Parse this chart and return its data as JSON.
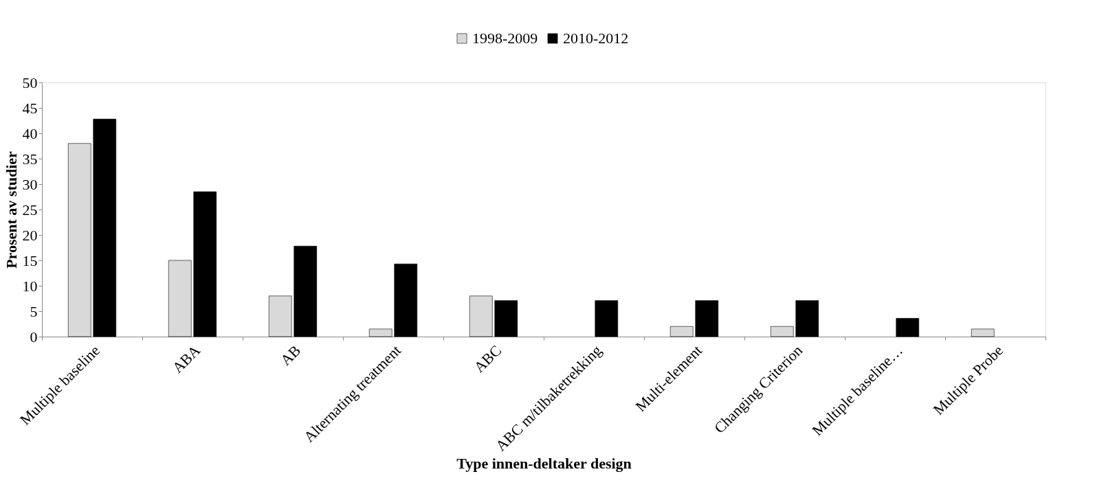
{
  "chart_data": {
    "type": "bar",
    "xlabel": "Type innen-deltaker design",
    "ylabel": "Prosent av studier",
    "categories": [
      "Multiple baseline",
      "ABA",
      "AB",
      "Alternating treatment",
      "ABC",
      "ABC m/tilbaketrekking",
      "Multi-element",
      "Changing Criterion",
      "Multiple baseline…",
      "Multiple Probe"
    ],
    "series": [
      {
        "name": "1998-2009",
        "color": "#d9d9d9",
        "values": [
          38,
          15,
          8,
          1.5,
          8,
          null,
          2,
          2,
          null,
          1.5
        ]
      },
      {
        "name": "2010-2012",
        "color": "#000000",
        "values": [
          42.8,
          28.5,
          17.8,
          14.3,
          7.1,
          7.1,
          7.1,
          7.1,
          3.6,
          null
        ]
      }
    ],
    "ylim": [
      0,
      50
    ],
    "yticks": [
      0,
      5,
      10,
      15,
      20,
      25,
      30,
      35,
      40,
      45,
      50
    ],
    "grid": false,
    "legend": "top"
  }
}
